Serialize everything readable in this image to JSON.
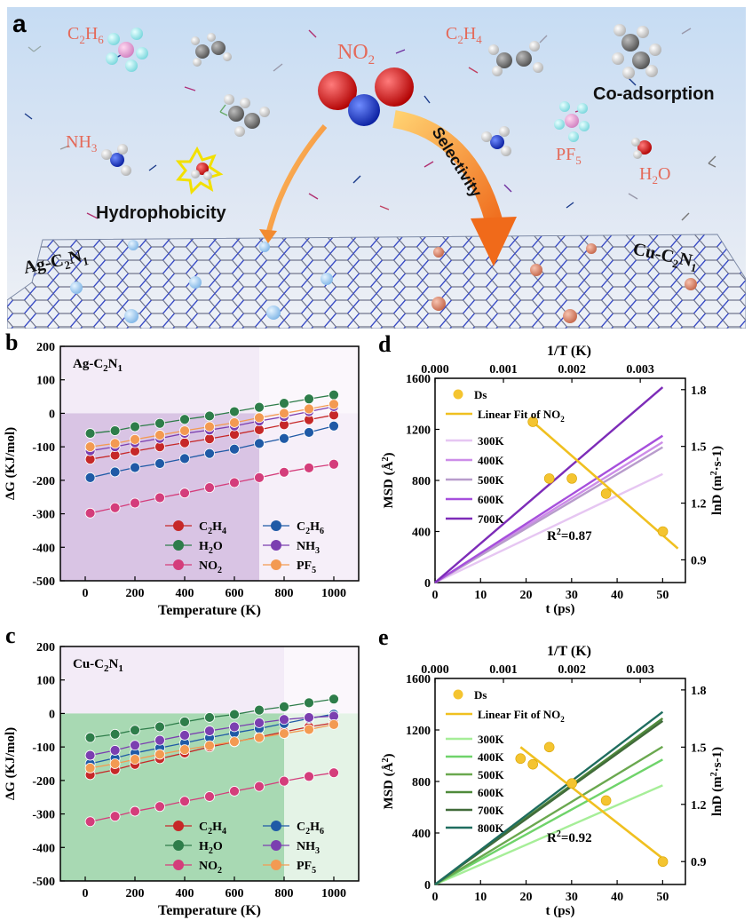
{
  "schematic": {
    "panel_letter": "a",
    "molecules": [
      {
        "id": "c2h6",
        "label": "C2H6",
        "plain": "C",
        "sub1": "2",
        "mid": "H",
        "sub2": "6"
      },
      {
        "id": "no2",
        "label": "NO2",
        "plain": "NO",
        "sub1": "2",
        "mid": "",
        "sub2": ""
      },
      {
        "id": "c2h4",
        "label": "C2H4",
        "plain": "C",
        "sub1": "2",
        "mid": "H",
        "sub2": "4"
      },
      {
        "id": "nh3",
        "label": "NH3",
        "plain": "NH",
        "sub1": "3",
        "mid": "",
        "sub2": ""
      },
      {
        "id": "pf5",
        "label": "PF5",
        "plain": "PF",
        "sub1": "5",
        "mid": "",
        "sub2": ""
      },
      {
        "id": "h2o",
        "label": "H2O",
        "plain": "H",
        "sub1": "2",
        "mid": "O",
        "sub2": ""
      }
    ],
    "co_adsorption": "Co-adsorption",
    "hydrophobicity": "Hydrophobicity",
    "selectivity": "Selectivity",
    "ag_label": {
      "pre": "Ag-C",
      "s1": "2",
      "mid": "N",
      "s2": "1"
    },
    "cu_label": {
      "pre": "Cu-C",
      "s1": "2",
      "mid": "N",
      "s2": "1"
    }
  },
  "chart_data": [
    {
      "panel": "b",
      "type": "line",
      "inset_label": {
        "pre": "Ag-C",
        "s1": "2",
        "mid": "N",
        "s2": "1"
      },
      "xlabel": "Temperature (K)",
      "ylabel": "ΔG (KJ/mol)",
      "xlim": [
        -100,
        1100
      ],
      "ylim": [
        -500,
        200
      ],
      "xticks": [
        0,
        200,
        400,
        600,
        800,
        1000
      ],
      "yticks": [
        -500,
        -400,
        -300,
        -200,
        -100,
        0,
        100,
        200
      ],
      "shade_split_x": 700,
      "shade_colors": {
        "left": "#d9c4e4",
        "right": "#f6eff9"
      },
      "x": [
        20,
        120,
        200,
        300,
        400,
        500,
        600,
        700,
        800,
        900,
        1000
      ],
      "series": [
        {
          "name": "C2H4",
          "base": "C",
          "s1": "2",
          "mid": "H",
          "s2": "4",
          "color": "#c62828",
          "values": [
            -137,
            -125,
            -113,
            -100,
            -88,
            -76,
            -63,
            -49,
            -34,
            -19,
            -5
          ]
        },
        {
          "name": "C2H6",
          "base": "C",
          "s1": "2",
          "mid": "H",
          "s2": "6",
          "color": "#1f5aa6",
          "values": [
            -192,
            -175,
            -162,
            -150,
            -135,
            -120,
            -107,
            -90,
            -75,
            -57,
            -38
          ]
        },
        {
          "name": "H2O",
          "base": "H",
          "s1": "2",
          "mid": "O",
          "s2": "",
          "color": "#2e7d4a",
          "values": [
            -60,
            -52,
            -40,
            -30,
            -18,
            -8,
            5,
            18,
            30,
            43,
            55
          ]
        },
        {
          "name": "NH3",
          "base": "NH",
          "s1": "3",
          "mid": "",
          "s2": "",
          "color": "#7b3fb0",
          "values": [
            -112,
            -100,
            -88,
            -75,
            -60,
            -50,
            -38,
            -23,
            -10,
            5,
            20
          ]
        },
        {
          "name": "NO2",
          "base": "NO",
          "s1": "2",
          "mid": "",
          "s2": "",
          "color": "#d43d7b",
          "values": [
            -298,
            -282,
            -268,
            -252,
            -238,
            -222,
            -207,
            -192,
            -176,
            -163,
            -152
          ]
        },
        {
          "name": "PF5",
          "base": "PF",
          "s1": "5",
          "mid": "",
          "s2": "",
          "color": "#f39a52",
          "values": [
            -100,
            -90,
            -78,
            -65,
            -52,
            -40,
            -28,
            -13,
            0,
            13,
            27
          ]
        }
      ]
    },
    {
      "panel": "c",
      "type": "line",
      "inset_label": {
        "pre": "Cu-C",
        "s1": "2",
        "mid": "N",
        "s2": "1"
      },
      "xlabel": "Temperature (K)",
      "ylabel": "ΔG (KJ/mol)",
      "xlim": [
        -100,
        1100
      ],
      "ylim": [
        -500,
        200
      ],
      "xticks": [
        0,
        200,
        400,
        600,
        800,
        1000
      ],
      "yticks": [
        -500,
        -400,
        -300,
        -200,
        -100,
        0,
        100,
        200
      ],
      "shade_split_x": 800,
      "shade_colors": {
        "left": "#a8d9b3",
        "right": "#e4f3e6"
      },
      "x": [
        20,
        120,
        200,
        300,
        400,
        500,
        600,
        700,
        800,
        900,
        1000
      ],
      "series": [
        {
          "name": "C2H4",
          "base": "C",
          "s1": "2",
          "mid": "H",
          "s2": "4",
          "color": "#c62828",
          "values": [
            -183,
            -168,
            -152,
            -135,
            -118,
            -100,
            -85,
            -70,
            -55,
            -40,
            -28
          ]
        },
        {
          "name": "C2H6",
          "base": "C",
          "s1": "2",
          "mid": "H",
          "s2": "6",
          "color": "#1f5aa6",
          "values": [
            -150,
            -133,
            -118,
            -103,
            -88,
            -72,
            -58,
            -45,
            -30,
            -15,
            -2
          ]
        },
        {
          "name": "H2O",
          "base": "H",
          "s1": "2",
          "mid": "O",
          "s2": "",
          "color": "#2e7d4a",
          "values": [
            -72,
            -62,
            -50,
            -40,
            -25,
            -12,
            -3,
            10,
            20,
            32,
            43
          ]
        },
        {
          "name": "NH3",
          "base": "NH",
          "s1": "3",
          "mid": "",
          "s2": "",
          "color": "#7b3fb0",
          "values": [
            -125,
            -110,
            -95,
            -80,
            -65,
            -52,
            -40,
            -28,
            -18,
            -12,
            -8
          ]
        },
        {
          "name": "NO2",
          "base": "NO",
          "s1": "2",
          "mid": "",
          "s2": "",
          "color": "#d43d7b",
          "values": [
            -323,
            -307,
            -292,
            -278,
            -262,
            -248,
            -232,
            -218,
            -202,
            -188,
            -177
          ]
        },
        {
          "name": "PF5",
          "base": "PF",
          "s1": "5",
          "mid": "",
          "s2": "",
          "color": "#f39a52",
          "values": [
            -163,
            -150,
            -137,
            -122,
            -108,
            -96,
            -84,
            -72,
            -60,
            -48,
            -33
          ]
        }
      ]
    },
    {
      "panel": "d",
      "type": "line",
      "xlabel": "t (ps)",
      "ylabel": "MSD (Å²)",
      "ylabel_main": "MSD (Å",
      "ylabel_sup": "2",
      "ylabel_end": ")",
      "top_xlabel": "1/T (K)",
      "right_ylabel": "lnD (m²·s-1)",
      "right_ylabel_main": "lnD (m",
      "right_ylabel_sup": "2",
      "right_ylabel_end": "·s-1)",
      "xlim": [
        0,
        55
      ],
      "ylim": [
        0,
        1600
      ],
      "xticks": [
        0,
        10,
        20,
        30,
        40,
        50
      ],
      "yticks": [
        0,
        400,
        800,
        1200,
        1600
      ],
      "top_xlim": [
        0,
        0.00366
      ],
      "top_xticks": [
        "0.000",
        "0.001",
        "0.002",
        "0.003"
      ],
      "top_xtick_values": [
        0,
        0.001,
        0.002,
        0.003
      ],
      "right_ylim": [
        0.78,
        1.86
      ],
      "right_yticks": [
        "0.9",
        "1.2",
        "1.5",
        "1.8"
      ],
      "right_ytick_values": [
        0.9,
        1.2,
        1.5,
        1.8
      ],
      "msd_series": [
        {
          "name": "300K",
          "color": "#e6c6f2",
          "end_value": 850
        },
        {
          "name": "400K",
          "color": "#cd8de8",
          "end_value": 1100
        },
        {
          "name": "500K",
          "color": "#b89ccc",
          "end_value": 1060
        },
        {
          "name": "600K",
          "color": "#a64fdc",
          "end_value": 1150
        },
        {
          "name": "700K",
          "color": "#7d2cb8",
          "end_value": 1530
        }
      ],
      "ds": {
        "name": "Ds",
        "color": "#f4c430",
        "points": [
          [
            0.00143,
            1.63
          ],
          [
            0.00167,
            1.33
          ],
          [
            0.002,
            1.33
          ],
          [
            0.0025,
            1.25
          ],
          [
            0.00333,
            1.05
          ]
        ]
      },
      "fit": {
        "name": "Linear Fit of NO",
        "sub": "2",
        "color": "#f0c020",
        "x0": 0.00143,
        "y0": 1.63,
        "x1": 0.00355,
        "y1": 0.96
      },
      "r2_text": {
        "pre": "R",
        "sup": "2",
        "post": "=0.87"
      }
    },
    {
      "panel": "e",
      "type": "line",
      "xlabel": "t (ps)",
      "ylabel": "MSD (Å²)",
      "ylabel_main": "MSD (Å",
      "ylabel_sup": "2",
      "ylabel_end": ")",
      "top_xlabel": "1/T (K)",
      "right_ylabel": "lnD (m²·s-1)",
      "right_ylabel_main": "lnD (m",
      "right_ylabel_sup": "2",
      "right_ylabel_end": "·s-1)",
      "xlim": [
        0,
        55
      ],
      "ylim": [
        0,
        1600
      ],
      "xticks": [
        0,
        10,
        20,
        30,
        40,
        50
      ],
      "yticks": [
        0,
        400,
        800,
        1200,
        1600
      ],
      "top_xlim": [
        0,
        0.00366
      ],
      "top_xticks": [
        "0.000",
        "0.001",
        "0.002",
        "0.003"
      ],
      "top_xtick_values": [
        0,
        0.001,
        0.002,
        0.003
      ],
      "right_ylim": [
        0.78,
        1.86
      ],
      "right_yticks": [
        "0.9",
        "1.2",
        "1.5",
        "1.8"
      ],
      "right_ytick_values": [
        0.9,
        1.2,
        1.5,
        1.8
      ],
      "msd_series": [
        {
          "name": "300K",
          "color": "#a6ee98",
          "end_value": 770
        },
        {
          "name": "400K",
          "color": "#6fd36a",
          "end_value": 970
        },
        {
          "name": "500K",
          "color": "#6aa84f",
          "end_value": 1070
        },
        {
          "name": "600K",
          "color": "#4f8a3a",
          "end_value": 1290
        },
        {
          "name": "700K",
          "color": "#416b3a",
          "end_value": 1270
        },
        {
          "name": "800K",
          "color": "#1f6d5f",
          "end_value": 1340
        }
      ],
      "ds": {
        "name": "Ds",
        "color": "#f4c430",
        "points": [
          [
            0.00125,
            1.44
          ],
          [
            0.00143,
            1.41
          ],
          [
            0.00167,
            1.5
          ],
          [
            0.002,
            1.31
          ],
          [
            0.0025,
            1.22
          ],
          [
            0.00333,
            0.9
          ]
        ]
      },
      "fit": {
        "name": "Linear Fit of NO",
        "sub": "2",
        "color": "#f0c020",
        "x0": 0.00125,
        "y0": 1.5,
        "x1": 0.00335,
        "y1": 0.91
      },
      "r2_text": {
        "pre": "R",
        "sup": "2",
        "post": "=0.92"
      }
    }
  ]
}
